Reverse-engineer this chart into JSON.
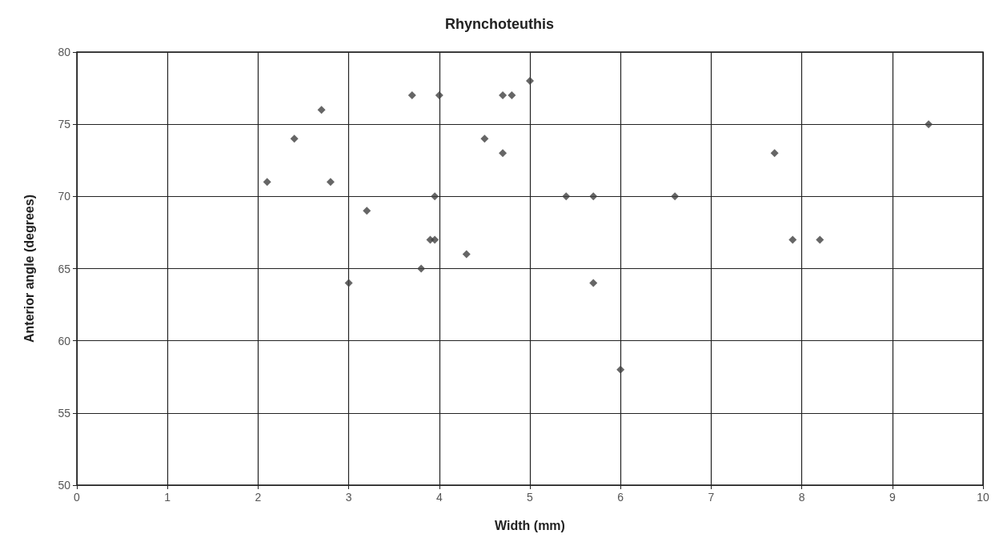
{
  "chart_data": {
    "type": "scatter",
    "title": "Rhynchoteuthis",
    "xlabel": "Width (mm)",
    "ylabel": "Anterior angle (degrees)",
    "x": [
      2.1,
      2.4,
      2.7,
      2.8,
      3.2,
      3.0,
      3.7,
      4.0,
      3.95,
      3.9,
      3.95,
      3.8,
      4.3,
      4.5,
      4.7,
      4.8,
      4.7,
      5.0,
      5.4,
      5.7,
      5.7,
      6.0,
      6.6,
      7.7,
      7.9,
      8.2,
      9.4
    ],
    "values": [
      71,
      74,
      76,
      71,
      69,
      64,
      77,
      77,
      70,
      67,
      67,
      65,
      66,
      74,
      77,
      77,
      73,
      78,
      70,
      70,
      64,
      58,
      70,
      73,
      67,
      67,
      75
    ],
    "color": "#404040",
    "marker": "diamond",
    "grid": true,
    "xlim": [
      0,
      10
    ],
    "xticks": [
      0,
      1,
      2,
      3,
      4,
      5,
      6,
      7,
      8,
      9,
      10
    ],
    "ylim": [
      50,
      80
    ],
    "yticks": [
      50,
      55,
      60,
      65,
      70,
      75,
      80
    ]
  }
}
